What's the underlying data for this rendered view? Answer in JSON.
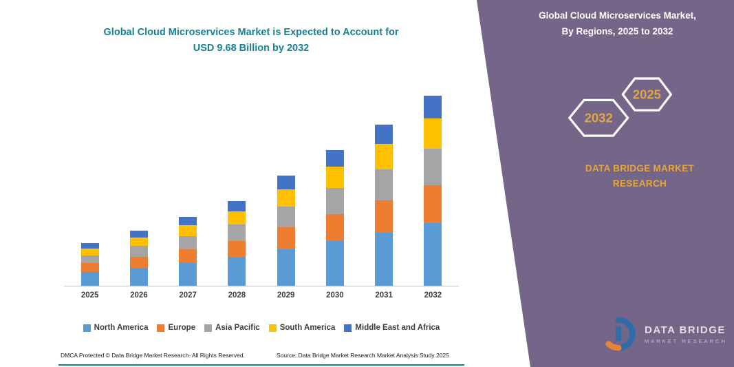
{
  "header": {
    "chart_title_line1": "Global Cloud Microservices Market is Expected to Account for",
    "chart_title_line2": "USD 9.68 Billion by 2032"
  },
  "side_panel": {
    "heading_line1": "Global Cloud Microservices Market,",
    "heading_line2": "By Regions, 2025 to 2032",
    "hexagon_left_label": "2032",
    "hexagon_right_label": "2025",
    "brand_line1": "DATA BRIDGE MARKET",
    "brand_line2": "RESEARCH",
    "logo_title": "DATA BRIDGE",
    "logo_subtitle": "MARKET RESEARCH"
  },
  "footer": {
    "dmca": "DMCA Protected © Data Bridge Market Research-  All Rights Reserved.",
    "source": "Source: Data Bridge Market Research  Market Analysis Study 2025"
  },
  "colors": {
    "accent_teal": "#16808F",
    "panel_purple": "#756689",
    "gold": "#E2A63D",
    "axis_gray": "#BFBFBF",
    "logo_blue": "#2E6DA8",
    "logo_orange": "#E8833A"
  },
  "chart_data": {
    "type": "bar",
    "stacked": true,
    "title": "Global Cloud Microservices Market is Expected to Account for USD 9.68 Billion by 2032",
    "units": "USD Billion",
    "categories": [
      "2025",
      "2026",
      "2027",
      "2028",
      "2029",
      "2030",
      "2031",
      "2032"
    ],
    "series": [
      {
        "name": "North America",
        "color": "#5B9BD5",
        "values": [
          0.72,
          0.93,
          1.16,
          1.43,
          1.85,
          2.28,
          2.72,
          3.19
        ]
      },
      {
        "name": "Europe",
        "color": "#ED7D31",
        "values": [
          0.43,
          0.56,
          0.7,
          0.86,
          1.12,
          1.38,
          1.64,
          1.94
        ]
      },
      {
        "name": "Asia Pacific",
        "color": "#A5A5A5",
        "values": [
          0.41,
          0.53,
          0.67,
          0.82,
          1.06,
          1.31,
          1.56,
          1.84
        ]
      },
      {
        "name": "South America",
        "color": "#FFC000",
        "values": [
          0.34,
          0.45,
          0.56,
          0.69,
          0.9,
          1.1,
          1.31,
          1.55
        ]
      },
      {
        "name": "Middle East and Africa",
        "color": "#4472C4",
        "values": [
          0.26,
          0.33,
          0.41,
          0.5,
          0.67,
          0.83,
          0.97,
          1.16
        ]
      }
    ],
    "totals": [
      2.16,
      2.8,
      3.5,
      4.3,
      5.6,
      6.9,
      8.2,
      9.68
    ],
    "ylim": [
      0,
      10
    ],
    "grid": false,
    "legend_position": "bottom"
  }
}
